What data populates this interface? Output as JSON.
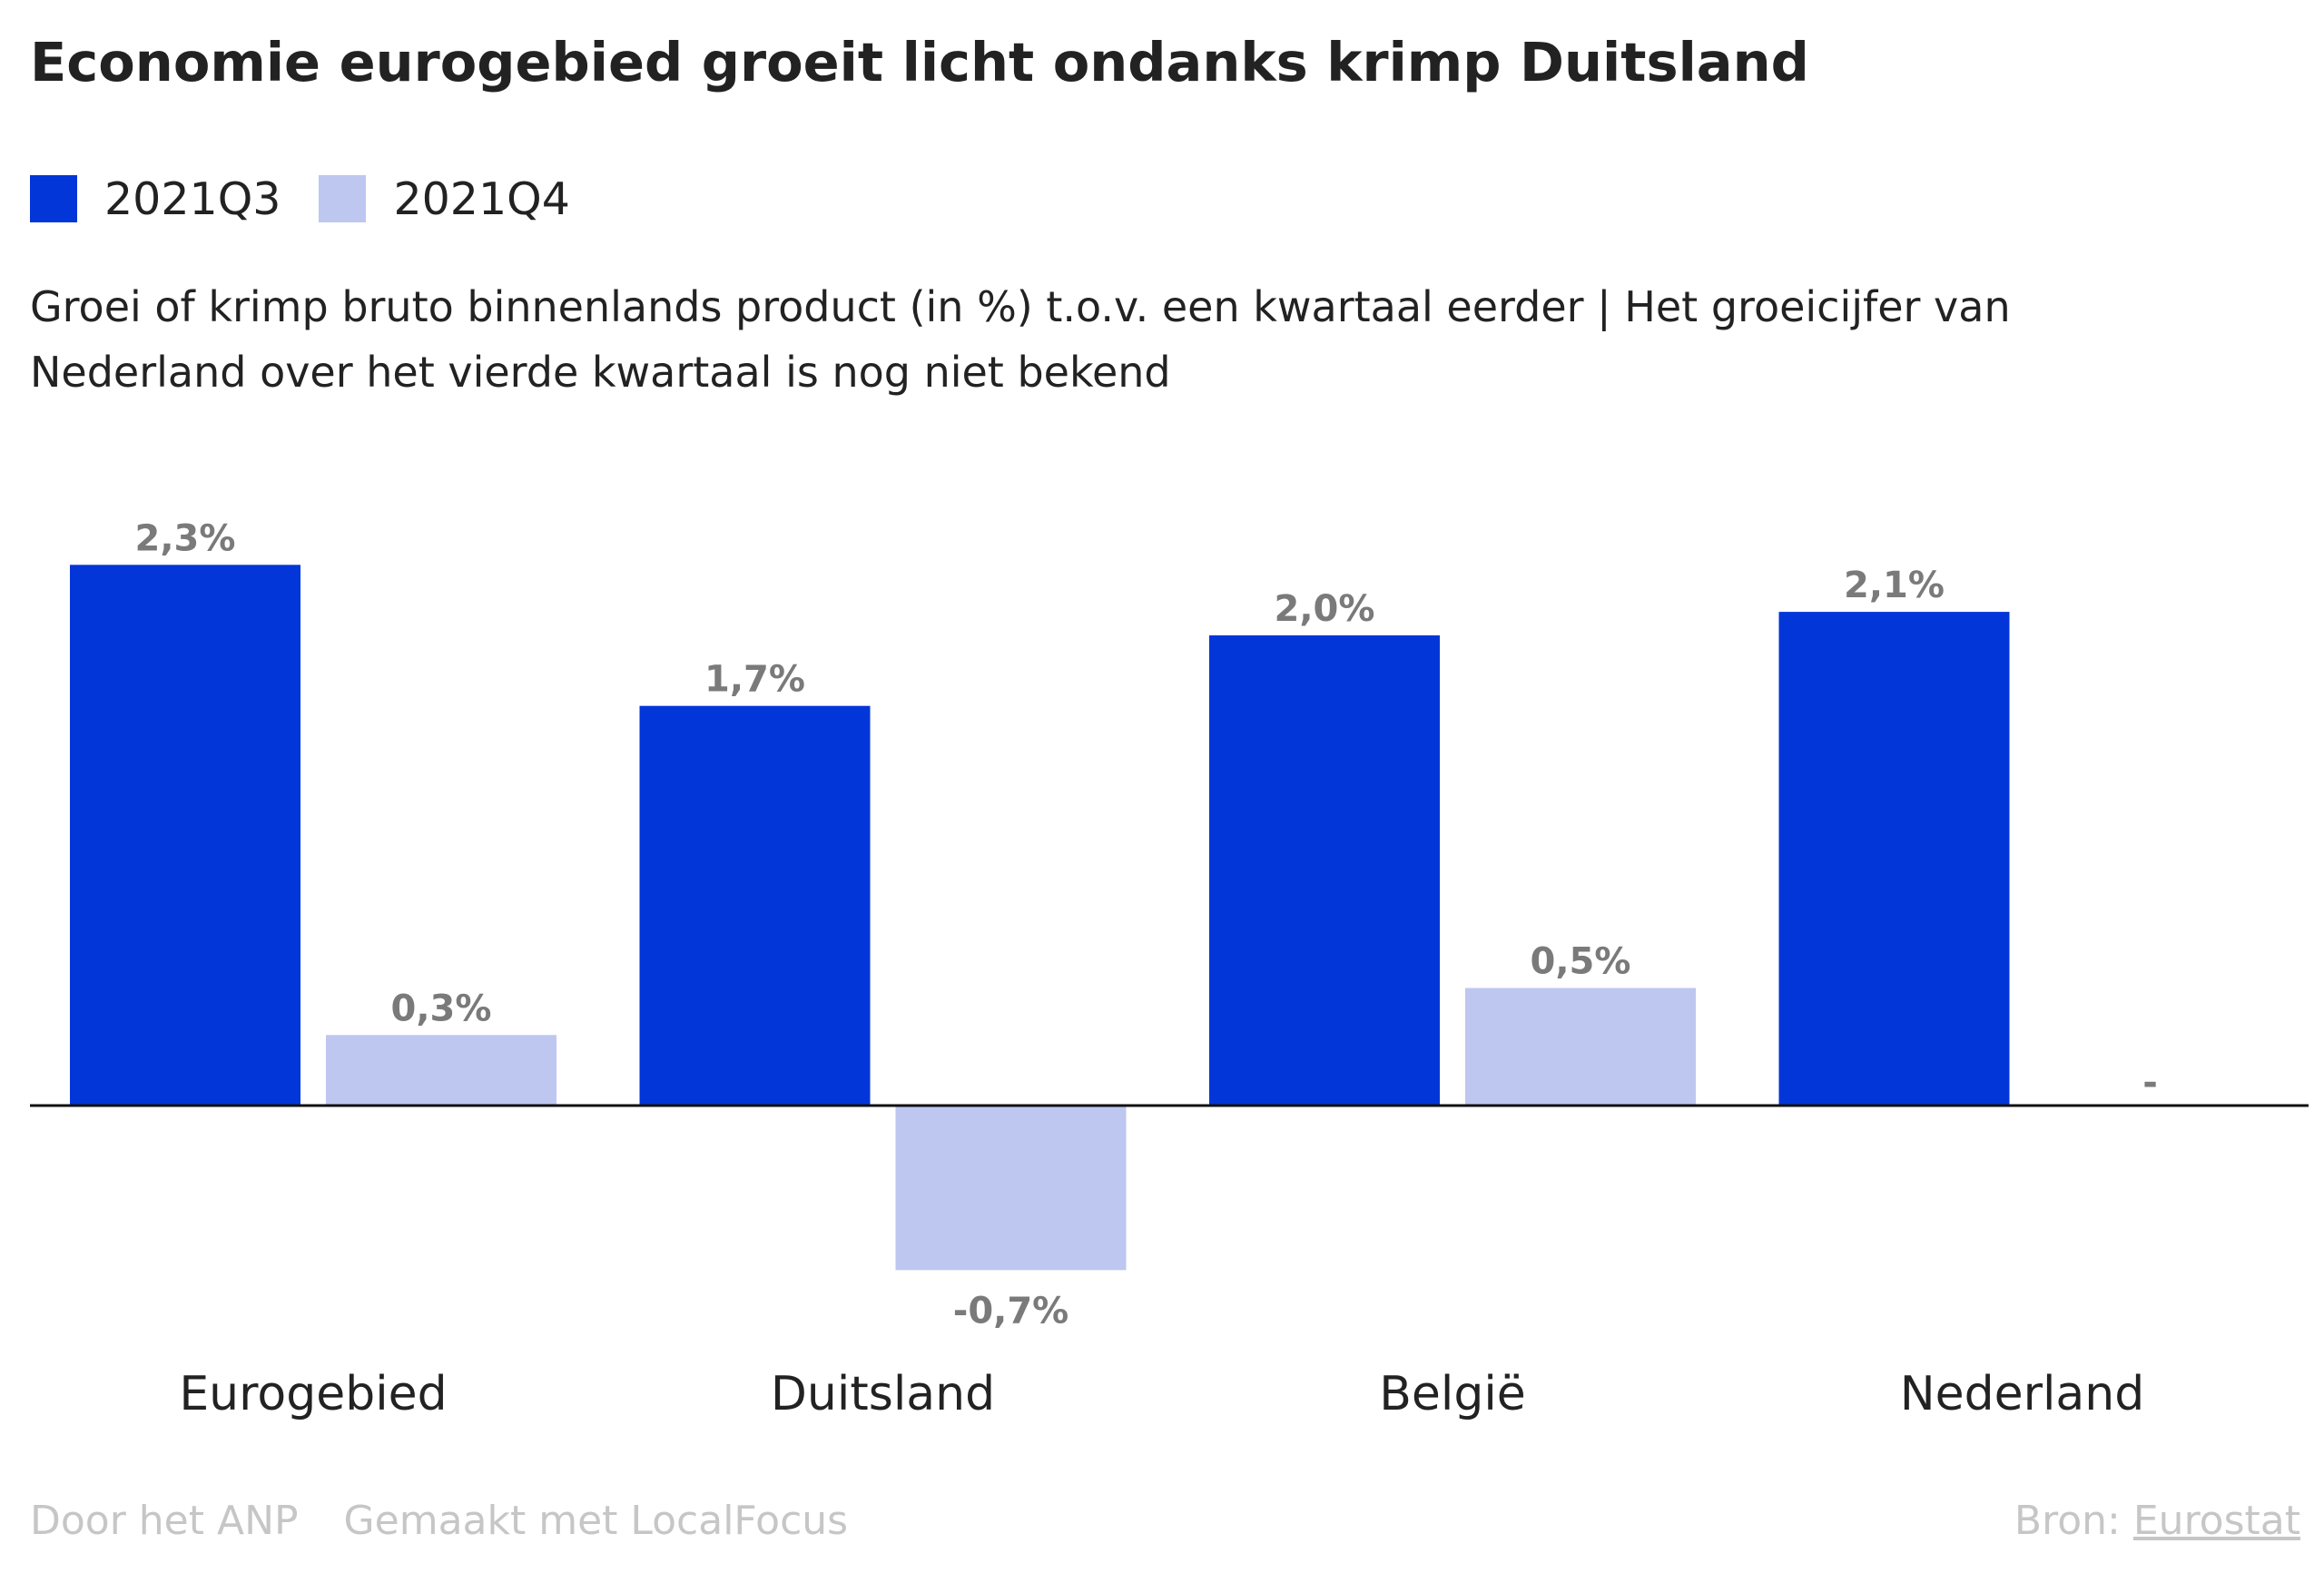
{
  "title": "Economie eurogebied groeit licht ondanks krimp Duitsland",
  "subtitle": "Groei of krimp bruto binnenlands product (in %) t.o.v. een kwartaal eerder | Het groeicijfer van Nederland over het vierde kwartaal is nog niet bekend",
  "colors": {
    "q3": "#0336d8",
    "q4": "#bdc7f0",
    "label": "#7a7a7a",
    "axis": "#111111",
    "footer": "#c6c6c6"
  },
  "chart_data": {
    "type": "bar",
    "title": "Economie eurogebied groeit licht ondanks krimp Duitsland",
    "categories": [
      "Eurogebied",
      "Duitsland",
      "België",
      "Nederland"
    ],
    "series": [
      {
        "name": "2021Q3",
        "values": [
          2.3,
          1.7,
          2.0,
          2.1
        ],
        "labels": [
          "2,3%",
          "1,7%",
          "2,0%",
          "2,1%"
        ]
      },
      {
        "name": "2021Q4",
        "values": [
          0.3,
          -0.7,
          0.5,
          null
        ],
        "labels": [
          "0,3%",
          "-0,7%",
          "0,5%",
          "-"
        ]
      }
    ],
    "ylim": [
      -0.7,
      2.3
    ],
    "grid": false,
    "legend": "top-left"
  },
  "footer": {
    "credit": "Door het ANP",
    "made_with": "Gemaakt met LocalFocus",
    "source_label": "Bron:",
    "source_link": "Eurostat"
  }
}
